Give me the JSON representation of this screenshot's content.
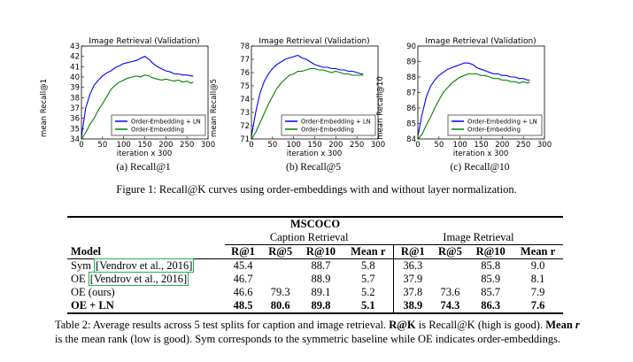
{
  "charts": [
    {
      "id": "recall1",
      "title": "Image Retrieval (Validation)",
      "xlabel": "iteration x 300",
      "ylabel": "mean Recall@1",
      "caption": "(a) Recall@1",
      "yticks": [
        "34",
        "35",
        "36",
        "37",
        "38",
        "39",
        "40",
        "41",
        "42",
        "43"
      ],
      "xticks": [
        "0",
        "50",
        "100",
        "150",
        "200",
        "250",
        "300"
      ]
    },
    {
      "id": "recall5",
      "title": "Image Retrieval (Validation)",
      "xlabel": "iteration x 300",
      "ylabel": "mean Recall@5",
      "caption": "(b) Recall@5",
      "yticks": [
        "71",
        "72",
        "73",
        "74",
        "75",
        "76",
        "77",
        "78"
      ],
      "xticks": [
        "0",
        "50",
        "100",
        "150",
        "200",
        "250",
        "300"
      ]
    },
    {
      "id": "recall10",
      "title": "Image Retrieval (Validation)",
      "xlabel": "iteration x 300",
      "ylabel": "mean Recall@10",
      "caption": "(c) Recall@10",
      "yticks": [
        "84",
        "85",
        "86",
        "87",
        "88",
        "89",
        "90"
      ],
      "xticks": [
        "0",
        "50",
        "100",
        "150",
        "200",
        "250",
        "300"
      ]
    }
  ],
  "chart_data": [
    {
      "type": "line",
      "title": "Image Retrieval (Validation)",
      "xlabel": "iteration x 300",
      "ylabel": "mean Recall@1",
      "xlim": [
        0,
        300
      ],
      "ylim": [
        34,
        43
      ],
      "legend_position": "lower-right",
      "series": [
        {
          "name": "Order-Embedding + LN",
          "color": "#0000ff",
          "x": [
            0,
            10,
            20,
            30,
            40,
            50,
            60,
            70,
            80,
            90,
            100,
            110,
            120,
            130,
            140,
            150,
            160,
            170,
            180,
            190,
            200,
            210,
            220,
            230,
            240,
            250,
            260,
            265
          ],
          "y": [
            34.2,
            37.0,
            38.3,
            39.2,
            39.7,
            40.1,
            40.4,
            40.6,
            40.9,
            41.1,
            41.3,
            41.4,
            41.5,
            41.6,
            41.8,
            42.0,
            41.7,
            41.3,
            41.0,
            40.8,
            40.6,
            40.5,
            40.3,
            40.3,
            40.2,
            40.2,
            40.1,
            40.1
          ]
        },
        {
          "name": "Order-Embedding",
          "color": "#008000",
          "x": [
            0,
            10,
            20,
            30,
            40,
            50,
            60,
            70,
            80,
            90,
            100,
            110,
            120,
            130,
            140,
            150,
            160,
            170,
            180,
            190,
            200,
            210,
            220,
            230,
            240,
            250,
            260,
            265
          ],
          "y": [
            34.0,
            34.6,
            35.4,
            36.0,
            36.8,
            37.4,
            38.1,
            38.8,
            39.2,
            39.5,
            39.7,
            39.9,
            40.0,
            40.1,
            40.0,
            40.2,
            40.1,
            39.9,
            39.8,
            39.7,
            39.8,
            39.7,
            39.6,
            39.7,
            39.5,
            39.6,
            39.4,
            39.5
          ]
        }
      ]
    },
    {
      "type": "line",
      "title": "Image Retrieval (Validation)",
      "xlabel": "iteration x 300",
      "ylabel": "mean Recall@5",
      "xlim": [
        0,
        300
      ],
      "ylim": [
        71,
        78
      ],
      "legend_position": "lower-right",
      "series": [
        {
          "name": "Order-Embedding + LN",
          "color": "#0000ff",
          "x": [
            0,
            10,
            20,
            30,
            40,
            50,
            60,
            70,
            80,
            90,
            100,
            110,
            120,
            130,
            140,
            150,
            160,
            170,
            180,
            190,
            200,
            210,
            220,
            230,
            240,
            250,
            260,
            265
          ],
          "y": [
            71.2,
            73.0,
            74.4,
            75.3,
            75.9,
            76.3,
            76.6,
            76.8,
            77.0,
            77.1,
            77.2,
            77.3,
            77.1,
            77.0,
            76.8,
            76.6,
            76.5,
            76.4,
            76.4,
            76.3,
            76.3,
            76.2,
            76.2,
            76.1,
            76.1,
            76.0,
            75.9,
            75.9
          ]
        },
        {
          "name": "Order-Embedding",
          "color": "#008000",
          "x": [
            0,
            10,
            20,
            30,
            40,
            50,
            60,
            70,
            80,
            90,
            100,
            110,
            120,
            130,
            140,
            150,
            160,
            170,
            180,
            190,
            200,
            210,
            220,
            230,
            240,
            250,
            260,
            265
          ],
          "y": [
            71.0,
            71.5,
            72.2,
            72.9,
            73.6,
            74.2,
            74.8,
            75.2,
            75.5,
            75.8,
            75.9,
            76.1,
            76.1,
            76.2,
            76.3,
            76.3,
            76.2,
            76.2,
            76.1,
            76.0,
            76.1,
            76.0,
            75.9,
            75.9,
            75.8,
            75.8,
            75.8,
            75.8
          ]
        }
      ]
    },
    {
      "type": "line",
      "title": "Image Retrieval (Validation)",
      "xlabel": "iteration x 300",
      "ylabel": "mean Recall@10",
      "xlim": [
        0,
        300
      ],
      "ylim": [
        84,
        90
      ],
      "legend_position": "lower-right",
      "series": [
        {
          "name": "Order-Embedding + LN",
          "color": "#0000ff",
          "x": [
            0,
            10,
            20,
            30,
            40,
            50,
            60,
            70,
            80,
            90,
            100,
            110,
            120,
            130,
            140,
            150,
            160,
            170,
            180,
            190,
            200,
            210,
            220,
            230,
            240,
            250,
            260,
            265
          ],
          "y": [
            84.2,
            85.6,
            86.7,
            87.4,
            87.8,
            88.1,
            88.3,
            88.5,
            88.6,
            88.7,
            88.8,
            88.9,
            88.9,
            88.8,
            88.6,
            88.5,
            88.4,
            88.3,
            88.2,
            88.2,
            88.1,
            88.1,
            88.0,
            88.0,
            87.9,
            87.9,
            87.8,
            87.8
          ]
        },
        {
          "name": "Order-Embedding",
          "color": "#008000",
          "x": [
            0,
            10,
            20,
            30,
            40,
            50,
            60,
            70,
            80,
            90,
            100,
            110,
            120,
            130,
            140,
            150,
            160,
            170,
            180,
            190,
            200,
            210,
            220,
            230,
            240,
            250,
            260,
            265
          ],
          "y": [
            84.0,
            84.3,
            84.9,
            85.4,
            86.0,
            86.5,
            87.0,
            87.3,
            87.6,
            87.8,
            88.0,
            88.1,
            88.2,
            88.2,
            88.2,
            88.1,
            88.1,
            88.0,
            87.9,
            87.9,
            87.8,
            87.8,
            87.7,
            87.7,
            87.6,
            87.7,
            87.6,
            87.7
          ]
        }
      ]
    }
  ],
  "legend": [
    "Order-Embedding + LN",
    "Order-Embedding"
  ],
  "figure_caption": "Figure 1: Recall@K curves using order-embeddings with and without layer normalization.",
  "table": {
    "title": "MSCOCO",
    "group_caption": "Caption Retrieval",
    "group_image": "Image Retrieval",
    "headers": [
      "Model",
      "R@1",
      "R@5",
      "R@10",
      "Mean r",
      "R@1",
      "R@5",
      "R@10",
      "Mean r"
    ],
    "rows": [
      {
        "model_prefix": "Sym ",
        "cite": "[Vendrov et al., 2016]",
        "values": [
          "45.4",
          "",
          "88.7",
          "5.8",
          "36.3",
          "",
          "85.8",
          "9.0"
        ]
      },
      {
        "model_prefix": "OE ",
        "cite": "[Vendrov et al., 2016]",
        "values": [
          "46.7",
          "",
          "88.9",
          "5.7",
          "37.9",
          "",
          "85.9",
          "8.1"
        ]
      },
      {
        "model_prefix": "OE (ours)",
        "cite": "",
        "values": [
          "46.6",
          "79.3",
          "89.1",
          "5.2",
          "37.8",
          "73.6",
          "85.7",
          "7.9"
        ]
      },
      {
        "model_prefix": "OE + LN",
        "cite": "",
        "values": [
          "48.5",
          "80.6",
          "89.8",
          "5.1",
          "38.9",
          "74.3",
          "86.3",
          "7.6"
        ]
      }
    ]
  },
  "table_caption": {
    "part1": "Table 2: Average results across 5 test splits for caption and image retrieval. ",
    "rk": "R@K",
    "part2": " is Recall@K (high is good). ",
    "meanr": "Mean ",
    "r": "r",
    "part3": " is the mean rank (low is good). Sym corresponds to the symmetric baseline while OE indicates order-embeddings."
  },
  "colors": {
    "ln_series": "#0000ff",
    "oe_series": "#008000",
    "citation_box": "#22b14c"
  }
}
